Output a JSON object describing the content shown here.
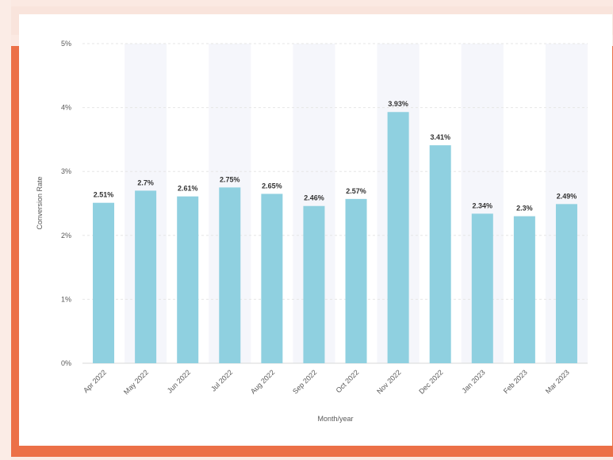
{
  "colors": {
    "bar": "#8fd0e0",
    "band": "#f5f6fb",
    "grid": "#e6e6e6",
    "frame_accent": "#ec7047"
  },
  "chart_data": {
    "type": "bar",
    "title": "",
    "xlabel": "Month/year",
    "ylabel": "Conversion Rate",
    "ylim": [
      0,
      5
    ],
    "yticks": [
      0,
      1,
      2,
      3,
      4,
      5
    ],
    "ytick_labels": [
      "0%",
      "1%",
      "2%",
      "3%",
      "4%",
      "5%"
    ],
    "grid": true,
    "legend": "none",
    "categories": [
      "Apr 2022",
      "May 2022",
      "Jun 2022",
      "Jul 2022",
      "Aug 2022",
      "Sep 2022",
      "Oct 2022",
      "Nov 2022",
      "Dec 2022",
      "Jan 2023",
      "Feb 2023",
      "Mar 2023"
    ],
    "values": [
      2.51,
      2.7,
      2.61,
      2.75,
      2.65,
      2.46,
      2.57,
      3.93,
      3.41,
      2.34,
      2.3,
      2.49
    ],
    "data_labels": [
      "2.51%",
      "2.7%",
      "2.61%",
      "2.75%",
      "2.65%",
      "2.46%",
      "2.57%",
      "3.93%",
      "3.41%",
      "2.34%",
      "2.3%",
      "2.49%"
    ]
  }
}
